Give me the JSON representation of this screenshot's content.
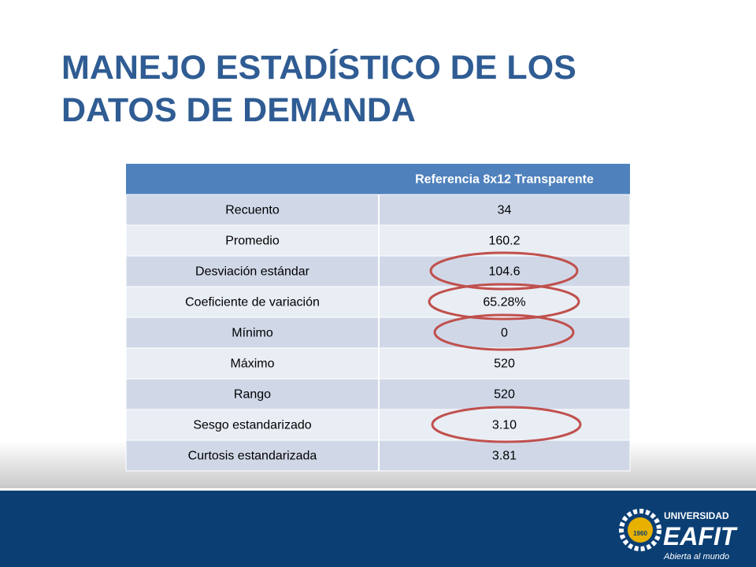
{
  "title": {
    "lines": [
      "MANEJO ESTADÍSTICO DE LOS",
      "DATOS DE DEMANDA"
    ]
  },
  "table": {
    "header": [
      "",
      "Referencia 8x12 Transparente"
    ],
    "rows": [
      [
        "Recuento",
        "34"
      ],
      [
        "Promedio",
        "160.2"
      ],
      [
        "Desviación estándar",
        "104.6"
      ],
      [
        "Coeficiente de variación",
        "65.28%"
      ],
      [
        "Mínimo",
        "0"
      ],
      [
        "Máximo",
        "520"
      ],
      [
        "Rango",
        "520"
      ],
      [
        "Sesgo estandarizado",
        "3.10"
      ],
      [
        "Curtosis estandarizada",
        "3.81"
      ]
    ]
  },
  "logo": {
    "small": "UNIVERSIDAD",
    "name": "EAFIT",
    "tagline": "Abierta al mundo",
    "year": "1960"
  }
}
